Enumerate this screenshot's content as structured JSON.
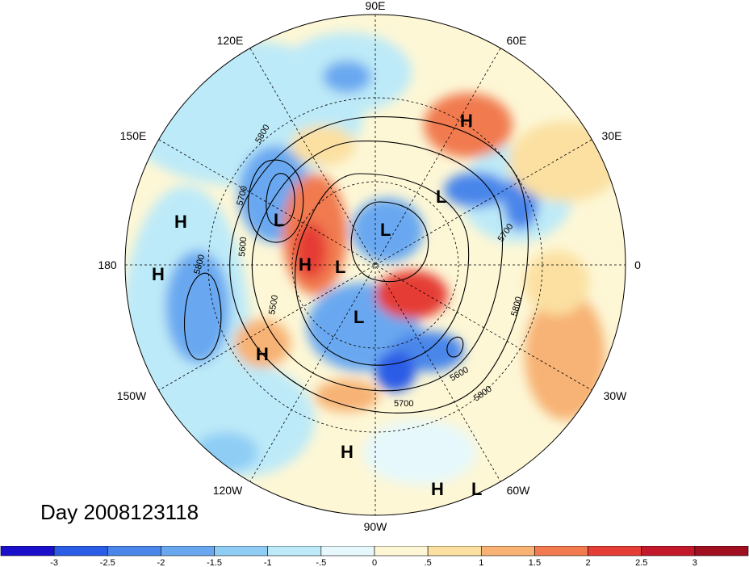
{
  "title": "Day 2008123118",
  "longitude_labels": {
    "deg90e": "90E",
    "deg120e": "120E",
    "deg60e": "60E",
    "deg150e": "150E",
    "deg30e": "30E",
    "deg180": "180",
    "deg0": "0",
    "deg150w": "150W",
    "deg30w": "30W",
    "deg120w": "120W",
    "deg60w": "60W",
    "deg90w": "90W"
  },
  "pressure_centers": [
    {
      "label": "H",
      "id": "h-eurasia"
    },
    {
      "label": "L",
      "id": "l-europe"
    },
    {
      "label": "L",
      "id": "l-siberia"
    },
    {
      "label": "L",
      "id": "l-pole"
    },
    {
      "label": "H",
      "id": "h-pacific-1"
    },
    {
      "label": "H",
      "id": "h-pacific-2"
    },
    {
      "label": "H",
      "id": "h-alaska"
    },
    {
      "label": "L",
      "id": "l-arctic"
    },
    {
      "label": "L",
      "id": "l-canada"
    },
    {
      "label": "H",
      "id": "h-north-pacific"
    },
    {
      "label": "H",
      "id": "h-mexico"
    },
    {
      "label": "H",
      "id": "h-caribbean"
    },
    {
      "label": "L",
      "id": "l-caribbean"
    }
  ],
  "contour_labels": [
    "5800",
    "5700",
    "5600",
    "5800",
    "5500",
    "5600",
    "5700",
    "5800",
    "5800",
    "5700"
  ],
  "colorbar": {
    "ticks": [
      "-3",
      "-2.5",
      "-2",
      "-1.5",
      "-1",
      "-.5",
      "0",
      ".5",
      "1",
      "1.5",
      "2",
      "2.5",
      "3"
    ],
    "colors": [
      "#1a10cc",
      "#2b5ce6",
      "#4a86ea",
      "#69a8f0",
      "#8fcdf5",
      "#bdeaf8",
      "#e6f8fb",
      "#fdf7d6",
      "#fbe0a1",
      "#f7b274",
      "#f17a4f",
      "#e53e36",
      "#c3182a",
      "#a00f20"
    ]
  }
}
